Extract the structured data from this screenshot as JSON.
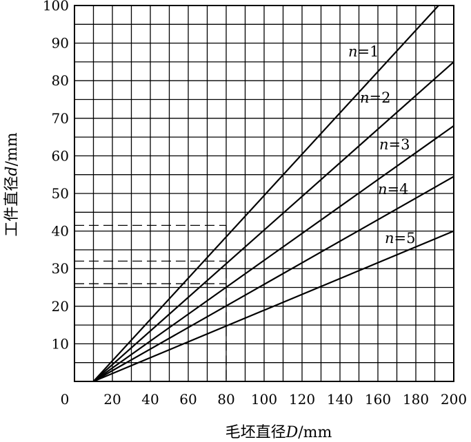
{
  "chart_data": {
    "type": "line",
    "xlabel_main": "毛坯直径",
    "xlabel_var": "D",
    "xlabel_unit": "/mm",
    "ylabel_main": "工件直径",
    "ylabel_var": "d",
    "ylabel_unit": "/mm",
    "xlim": [
      0,
      200
    ],
    "ylim": [
      0,
      100
    ],
    "x_minor_step": 10,
    "y_minor_step": 5,
    "x_ticks": [
      0,
      20,
      40,
      60,
      80,
      100,
      120,
      140,
      160,
      180,
      200
    ],
    "y_ticks": [
      10,
      20,
      30,
      40,
      50,
      60,
      70,
      80,
      90,
      100
    ],
    "x_tick_labels": [
      "0",
      "20",
      "40",
      "60",
      "80",
      "100",
      "120",
      "140",
      "160",
      "180",
      "200"
    ],
    "y_tick_labels": [
      "10",
      "20",
      "30",
      "40",
      "50",
      "60",
      "70",
      "80",
      "90",
      "100"
    ],
    "grid": true,
    "series": [
      {
        "name": "n=1",
        "var": "n",
        "eq": "=1",
        "x": [
          10,
          192
        ],
        "y": [
          0,
          100
        ]
      },
      {
        "name": "n=2",
        "var": "n",
        "eq": "=2",
        "x": [
          10,
          200
        ],
        "y": [
          0,
          85
        ]
      },
      {
        "name": "n=3",
        "var": "n",
        "eq": "=3",
        "x": [
          10,
          200
        ],
        "y": [
          0,
          68
        ]
      },
      {
        "name": "n=4",
        "var": "n",
        "eq": "=4",
        "x": [
          10,
          200
        ],
        "y": [
          0,
          54.5
        ]
      },
      {
        "name": "n=5",
        "var": "n",
        "eq": "=5",
        "x": [
          10,
          200
        ],
        "y": [
          0,
          40
        ]
      }
    ],
    "guide_lines": {
      "x": 80,
      "y_values": [
        41.5,
        32,
        26
      ],
      "x_vertical_range": [
        0,
        41.5
      ]
    }
  }
}
